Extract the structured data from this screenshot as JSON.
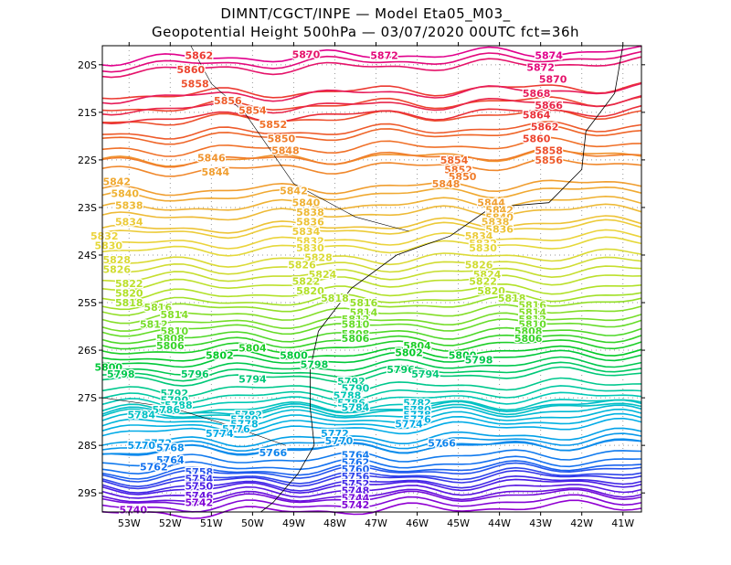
{
  "title_line1": "DIMNT/CGCT/INPE  —   Model Eta05_M03_",
  "title_line2": "Geopotential Height 500hPa  —   03/07/2020 00UTC fct=36h",
  "chart_data": {
    "type": "contour",
    "variable": "Geopotential Height 500hPa",
    "contour_interval": 2,
    "x_ticks": [
      "53W",
      "52W",
      "51W",
      "50W",
      "49W",
      "48W",
      "47W",
      "46W",
      "45W",
      "44W",
      "43W",
      "42W",
      "41W"
    ],
    "x_tick_values": [
      -53,
      -52,
      -51,
      -50,
      -49,
      -48,
      -47,
      -46,
      -45,
      -44,
      -43,
      -42,
      -41
    ],
    "y_ticks": [
      "20S",
      "21S",
      "22S",
      "23S",
      "24S",
      "25S",
      "26S",
      "27S",
      "28S",
      "29S"
    ],
    "y_tick_values": [
      -20,
      -21,
      -22,
      -23,
      -24,
      -25,
      -26,
      -27,
      -28,
      -29
    ],
    "xlim": [
      -53.65,
      -40.55
    ],
    "ylim": [
      -29.4,
      -19.6
    ],
    "z_range": [
      5740,
      5874
    ],
    "grid": "dotted",
    "contour_labels": [
      {
        "v": 5874,
        "lon": -42.8,
        "lat": -19.8
      },
      {
        "v": 5872,
        "lon": -46.8,
        "lat": -19.8
      },
      {
        "v": 5870,
        "lon": -48.7,
        "lat": -19.78
      },
      {
        "v": 5872,
        "lon": -43.0,
        "lat": -20.05
      },
      {
        "v": 5870,
        "lon": -42.7,
        "lat": -20.3
      },
      {
        "v": 5868,
        "lon": -43.1,
        "lat": -20.6
      },
      {
        "v": 5866,
        "lon": -42.8,
        "lat": -20.85
      },
      {
        "v": 5864,
        "lon": -43.1,
        "lat": -21.05
      },
      {
        "v": 5862,
        "lon": -42.9,
        "lat": -21.3
      },
      {
        "v": 5860,
        "lon": -43.1,
        "lat": -21.55
      },
      {
        "v": 5858,
        "lon": -42.8,
        "lat": -21.8
      },
      {
        "v": 5856,
        "lon": -42.8,
        "lat": -22.0
      },
      {
        "v": 5862,
        "lon": -51.3,
        "lat": -19.8
      },
      {
        "v": 5860,
        "lon": -51.5,
        "lat": -20.1
      },
      {
        "v": 5858,
        "lon": -51.4,
        "lat": -20.4
      },
      {
        "v": 5856,
        "lon": -50.6,
        "lat": -20.75
      },
      {
        "v": 5854,
        "lon": -50.0,
        "lat": -20.95
      },
      {
        "v": 5852,
        "lon": -49.5,
        "lat": -21.25
      },
      {
        "v": 5850,
        "lon": -49.3,
        "lat": -21.55
      },
      {
        "v": 5848,
        "lon": -49.2,
        "lat": -21.8
      },
      {
        "v": 5846,
        "lon": -51.0,
        "lat": -21.95
      },
      {
        "v": 5844,
        "lon": -50.9,
        "lat": -22.25
      },
      {
        "v": 5854,
        "lon": -45.1,
        "lat": -22.0
      },
      {
        "v": 5852,
        "lon": -45.0,
        "lat": -22.2
      },
      {
        "v": 5850,
        "lon": -44.9,
        "lat": -22.35
      },
      {
        "v": 5848,
        "lon": -45.3,
        "lat": -22.5
      },
      {
        "v": 5842,
        "lon": -53.3,
        "lat": -22.45
      },
      {
        "v": 5840,
        "lon": -53.1,
        "lat": -22.7
      },
      {
        "v": 5838,
        "lon": -53.0,
        "lat": -22.95
      },
      {
        "v": 5842,
        "lon": -49.0,
        "lat": -22.65
      },
      {
        "v": 5840,
        "lon": -48.7,
        "lat": -22.9
      },
      {
        "v": 5838,
        "lon": -48.6,
        "lat": -23.1
      },
      {
        "v": 5844,
        "lon": -44.2,
        "lat": -22.9
      },
      {
        "v": 5842,
        "lon": -44.0,
        "lat": -23.05
      },
      {
        "v": 5840,
        "lon": -44.0,
        "lat": -23.2
      },
      {
        "v": 5838,
        "lon": -44.1,
        "lat": -23.3
      },
      {
        "v": 5836,
        "lon": -48.6,
        "lat": -23.3
      },
      {
        "v": 5834,
        "lon": -53.0,
        "lat": -23.3
      },
      {
        "v": 5836,
        "lon": -44.0,
        "lat": -23.45
      },
      {
        "v": 5834,
        "lon": -48.7,
        "lat": -23.5
      },
      {
        "v": 5832,
        "lon": -53.6,
        "lat": -23.6
      },
      {
        "v": 5834,
        "lon": -44.5,
        "lat": -23.6
      },
      {
        "v": 5832,
        "lon": -48.6,
        "lat": -23.7
      },
      {
        "v": 5832,
        "lon": -44.4,
        "lat": -23.75
      },
      {
        "v": 5830,
        "lon": -53.5,
        "lat": -23.8
      },
      {
        "v": 5830,
        "lon": -48.6,
        "lat": -23.85
      },
      {
        "v": 5830,
        "lon": -44.4,
        "lat": -23.85
      },
      {
        "v": 5828,
        "lon": -48.4,
        "lat": -24.05
      },
      {
        "v": 5828,
        "lon": -53.3,
        "lat": -24.1
      },
      {
        "v": 5826,
        "lon": -48.8,
        "lat": -24.2
      },
      {
        "v": 5826,
        "lon": -44.5,
        "lat": -24.2
      },
      {
        "v": 5826,
        "lon": -53.3,
        "lat": -24.3
      },
      {
        "v": 5824,
        "lon": -48.3,
        "lat": -24.4
      },
      {
        "v": 5824,
        "lon": -44.3,
        "lat": -24.4
      },
      {
        "v": 5822,
        "lon": -53.0,
        "lat": -24.6
      },
      {
        "v": 5822,
        "lon": -48.7,
        "lat": -24.55
      },
      {
        "v": 5822,
        "lon": -44.4,
        "lat": -24.55
      },
      {
        "v": 5820,
        "lon": -48.6,
        "lat": -24.75
      },
      {
        "v": 5820,
        "lon": -53.0,
        "lat": -24.8
      },
      {
        "v": 5820,
        "lon": -44.2,
        "lat": -24.75
      },
      {
        "v": 5818,
        "lon": -53.0,
        "lat": -25.0
      },
      {
        "v": 5818,
        "lon": -48.0,
        "lat": -24.9
      },
      {
        "v": 5818,
        "lon": -43.7,
        "lat": -24.9
      },
      {
        "v": 5816,
        "lon": -52.3,
        "lat": -25.1
      },
      {
        "v": 5816,
        "lon": -47.3,
        "lat": -25.0
      },
      {
        "v": 5816,
        "lon": -43.2,
        "lat": -25.05
      },
      {
        "v": 5814,
        "lon": -51.9,
        "lat": -25.25
      },
      {
        "v": 5814,
        "lon": -47.3,
        "lat": -25.2
      },
      {
        "v": 5814,
        "lon": -43.2,
        "lat": -25.2
      },
      {
        "v": 5812,
        "lon": -52.4,
        "lat": -25.45
      },
      {
        "v": 5812,
        "lon": -47.5,
        "lat": -25.35
      },
      {
        "v": 5812,
        "lon": -43.2,
        "lat": -25.35
      },
      {
        "v": 5810,
        "lon": -51.9,
        "lat": -25.6
      },
      {
        "v": 5810,
        "lon": -47.5,
        "lat": -25.45
      },
      {
        "v": 5810,
        "lon": -43.2,
        "lat": -25.45
      },
      {
        "v": 5808,
        "lon": -52.0,
        "lat": -25.75
      },
      {
        "v": 5808,
        "lon": -47.5,
        "lat": -25.65
      },
      {
        "v": 5808,
        "lon": -43.3,
        "lat": -25.6
      },
      {
        "v": 5806,
        "lon": -47.5,
        "lat": -25.75
      },
      {
        "v": 5806,
        "lon": -43.3,
        "lat": -25.75
      },
      {
        "v": 5806,
        "lon": -52.0,
        "lat": -25.9
      },
      {
        "v": 5804,
        "lon": -50.0,
        "lat": -25.95
      },
      {
        "v": 5804,
        "lon": -46.0,
        "lat": -25.9
      },
      {
        "v": 5802,
        "lon": -50.8,
        "lat": -26.1
      },
      {
        "v": 5802,
        "lon": -46.2,
        "lat": -26.05
      },
      {
        "v": 5800,
        "lon": -53.5,
        "lat": -26.35
      },
      {
        "v": 5800,
        "lon": -49.0,
        "lat": -26.1
      },
      {
        "v": 5800,
        "lon": -44.9,
        "lat": -26.1
      },
      {
        "v": 5798,
        "lon": -48.5,
        "lat": -26.3
      },
      {
        "v": 5798,
        "lon": -44.5,
        "lat": -26.2
      },
      {
        "v": 5798,
        "lon": -53.2,
        "lat": -26.5
      },
      {
        "v": 5796,
        "lon": -51.4,
        "lat": -26.5
      },
      {
        "v": 5796,
        "lon": -46.4,
        "lat": -26.4
      },
      {
        "v": 5794,
        "lon": -50.0,
        "lat": -26.6
      },
      {
        "v": 5794,
        "lon": -45.8,
        "lat": -26.5
      },
      {
        "v": 5792,
        "lon": -47.6,
        "lat": -26.65
      },
      {
        "v": 5790,
        "lon": -47.5,
        "lat": -26.8
      },
      {
        "v": 5792,
        "lon": -51.9,
        "lat": -26.9
      },
      {
        "v": 5790,
        "lon": -51.9,
        "lat": -27.05
      },
      {
        "v": 5788,
        "lon": -47.7,
        "lat": -26.95
      },
      {
        "v": 5788,
        "lon": -51.8,
        "lat": -27.15
      },
      {
        "v": 5786,
        "lon": -47.6,
        "lat": -27.1
      },
      {
        "v": 5786,
        "lon": -52.1,
        "lat": -27.25
      },
      {
        "v": 5784,
        "lon": -47.5,
        "lat": -27.2
      },
      {
        "v": 5784,
        "lon": -52.7,
        "lat": -27.35
      },
      {
        "v": 5782,
        "lon": -46.0,
        "lat": -27.1
      },
      {
        "v": 5782,
        "lon": -50.1,
        "lat": -27.35
      },
      {
        "v": 5780,
        "lon": -46.0,
        "lat": -27.25
      },
      {
        "v": 5780,
        "lon": -50.2,
        "lat": -27.45
      },
      {
        "v": 5778,
        "lon": -46.0,
        "lat": -27.35
      },
      {
        "v": 5778,
        "lon": -50.2,
        "lat": -27.55
      },
      {
        "v": 5776,
        "lon": -46.0,
        "lat": -27.45
      },
      {
        "v": 5776,
        "lon": -50.4,
        "lat": -27.65
      },
      {
        "v": 5774,
        "lon": -46.2,
        "lat": -27.55
      },
      {
        "v": 5774,
        "lon": -50.8,
        "lat": -27.75
      },
      {
        "v": 5772,
        "lon": -48.0,
        "lat": -27.75
      },
      {
        "v": 5772,
        "lon": -52.3,
        "lat": -27.95
      },
      {
        "v": 5770,
        "lon": -47.9,
        "lat": -27.9
      },
      {
        "v": 5770,
        "lon": -52.7,
        "lat": -28.0
      },
      {
        "v": 5768,
        "lon": -52.0,
        "lat": -28.05
      },
      {
        "v": 5766,
        "lon": -45.4,
        "lat": -27.95
      },
      {
        "v": 5766,
        "lon": -49.5,
        "lat": -28.15
      },
      {
        "v": 5764,
        "lon": -47.5,
        "lat": -28.2
      },
      {
        "v": 5764,
        "lon": -52.0,
        "lat": -28.3
      },
      {
        "v": 5762,
        "lon": -47.5,
        "lat": -28.35
      },
      {
        "v": 5762,
        "lon": -52.4,
        "lat": -28.45
      },
      {
        "v": 5760,
        "lon": -47.5,
        "lat": -28.5
      },
      {
        "v": 5758,
        "lon": -51.3,
        "lat": -28.55
      },
      {
        "v": 5756,
        "lon": -47.5,
        "lat": -28.65
      },
      {
        "v": 5754,
        "lon": -51.3,
        "lat": -28.7
      },
      {
        "v": 5752,
        "lon": -47.5,
        "lat": -28.8
      },
      {
        "v": 5750,
        "lon": -51.3,
        "lat": -28.85
      },
      {
        "v": 5748,
        "lon": -47.5,
        "lat": -28.95
      },
      {
        "v": 5746,
        "lon": -51.3,
        "lat": -29.05
      },
      {
        "v": 5744,
        "lon": -47.5,
        "lat": -29.1
      },
      {
        "v": 5742,
        "lon": -51.3,
        "lat": -29.2
      },
      {
        "v": 5742,
        "lon": -47.5,
        "lat": -29.25
      },
      {
        "v": 5740,
        "lon": -52.9,
        "lat": -29.35
      }
    ]
  }
}
